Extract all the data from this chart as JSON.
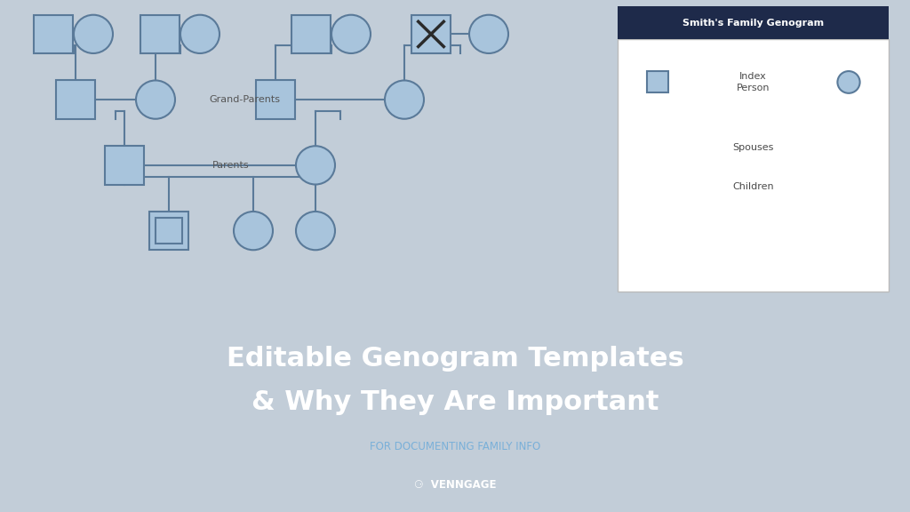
{
  "bg_top_color": "#c2cdd8",
  "bg_bottom_color": "#252d52",
  "shape_fill": "#a8c4dc",
  "shape_edge": "#5a7a99",
  "line_color": "#5a7a99",
  "legend_title_bg": "#1e2a4a",
  "legend_title_text": "Smith's Family Genogram",
  "legend_title_color": "#ffffff",
  "legend_label_index": "Index\nPerson",
  "legend_label_spouses": "Spouses",
  "legend_label_children": "Children",
  "grand_parents_label": "Grand-Parents",
  "parents_label": "Parents",
  "main_title_line1": "Editable Genogram Templates",
  "main_title_line2": "& Why They Are Important",
  "subtitle": "FOR DOCUMENTING FAMILY INFO",
  "brand": "VENNGAGE"
}
